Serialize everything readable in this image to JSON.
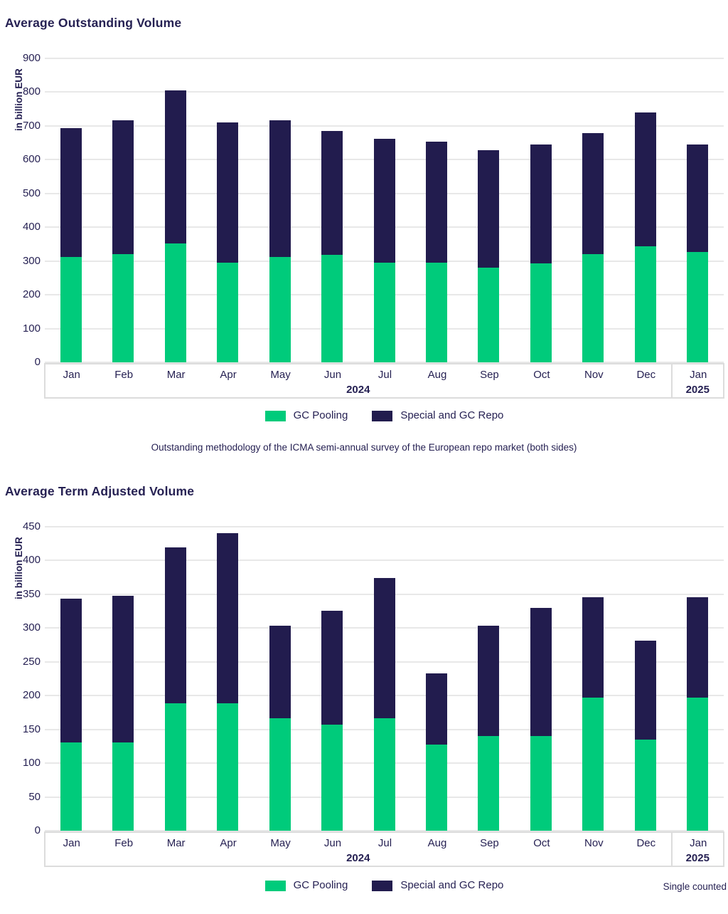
{
  "page": {
    "caption": "Outstanding methodology of the ICMA semi-annual survey of the European repo market (both sides)",
    "footnote": "Single counted"
  },
  "colors": {
    "gc_pooling_green": "#00cb7b",
    "special_repo_navy": "#221c4e",
    "text_navy": "#262153",
    "gridline_gray": "#e8e8e8",
    "band_border_gray": "#dcdcdc"
  },
  "chart_data": [
    {
      "type": "bar",
      "stacked": true,
      "title": "Average Outstanding Volume",
      "ylabel": "in billion EUR",
      "ylim": [
        0,
        900
      ],
      "ytick_step": 100,
      "grid": "horizontal",
      "legend_position": "bottom",
      "categories": [
        "Jan",
        "Feb",
        "Mar",
        "Apr",
        "May",
        "Jun",
        "Jul",
        "Aug",
        "Sep",
        "Oct",
        "Nov",
        "Dec",
        "Jan"
      ],
      "x_groups": [
        {
          "label": "2024",
          "span": 12
        },
        {
          "label": "2025",
          "span": 1
        }
      ],
      "series": [
        {
          "name": "GC Pooling",
          "color": "#00cb7b",
          "values": [
            311,
            320,
            352,
            296,
            311,
            319,
            296,
            295,
            280,
            294,
            320,
            344,
            326
          ]
        },
        {
          "name": "Special and GC Repo",
          "color": "#221c4e",
          "values": [
            382,
            397,
            453,
            414,
            406,
            367,
            365,
            359,
            349,
            350,
            358,
            396,
            320
          ]
        }
      ],
      "totals": [
        693,
        717,
        805,
        710,
        717,
        686,
        661,
        654,
        629,
        644,
        678,
        740,
        646
      ]
    },
    {
      "type": "bar",
      "stacked": true,
      "title": "Average Term Adjusted Volume",
      "ylabel": "in billion EUR",
      "ylim": [
        0,
        450
      ],
      "ytick_step": 50,
      "grid": "horizontal",
      "legend_position": "bottom",
      "categories": [
        "Jan",
        "Feb",
        "Mar",
        "Apr",
        "May",
        "Jun",
        "Jul",
        "Aug",
        "Sep",
        "Oct",
        "Nov",
        "Dec",
        "Jan"
      ],
      "x_groups": [
        {
          "label": "2024",
          "span": 12
        },
        {
          "label": "2025",
          "span": 1
        }
      ],
      "series": [
        {
          "name": "GC Pooling",
          "color": "#00cb7b",
          "values": [
            131,
            131,
            189,
            189,
            167,
            157,
            167,
            127,
            140,
            140,
            197,
            135,
            197
          ]
        },
        {
          "name": "Special and GC Repo",
          "color": "#221c4e",
          "values": [
            213,
            217,
            230,
            252,
            137,
            169,
            207,
            106,
            163,
            190,
            149,
            146,
            149
          ]
        }
      ],
      "totals": [
        344,
        348,
        419,
        441,
        304,
        326,
        374,
        233,
        303,
        330,
        346,
        281,
        346
      ]
    }
  ]
}
